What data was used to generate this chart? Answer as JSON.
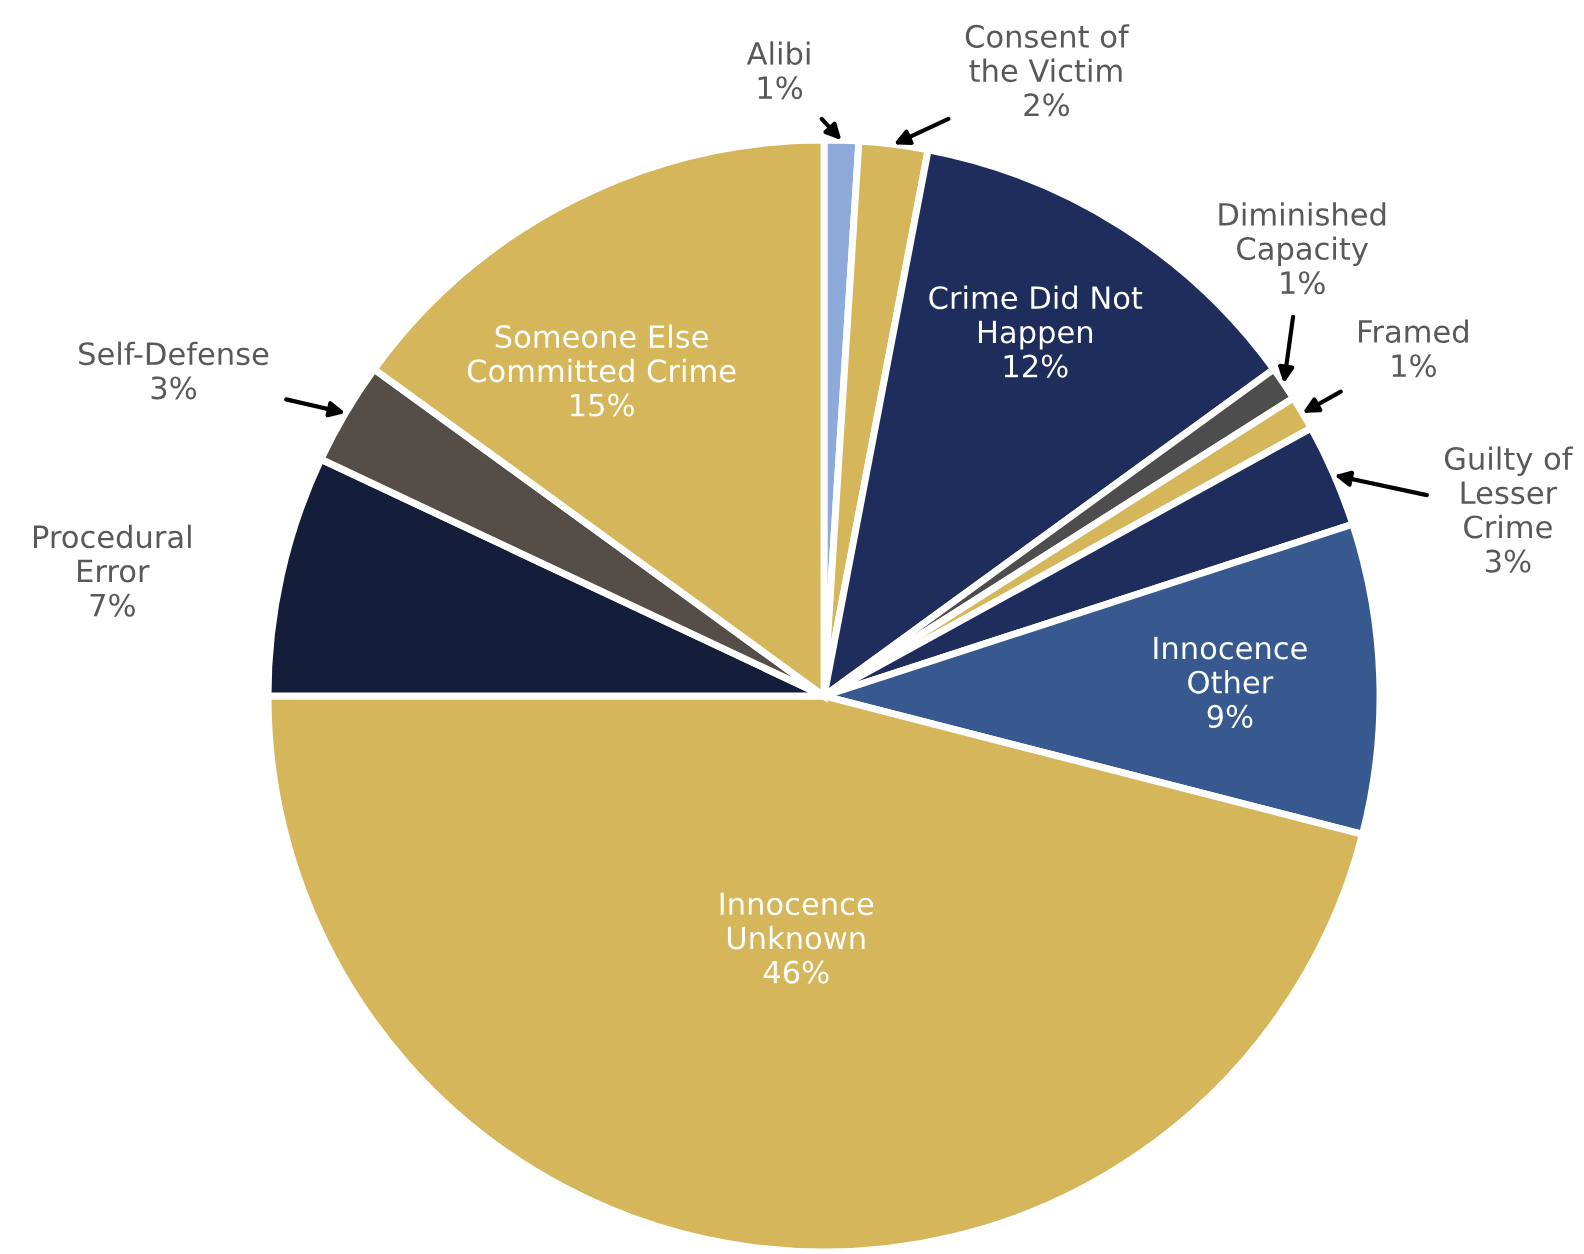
{
  "chart_data": {
    "type": "pie",
    "categories": [
      "Alibi",
      "Consent of the Victim",
      "Crime Did Not Happen",
      "Diminished Capacity",
      "Framed",
      "Guilty of Lesser Crime",
      "Innocence Other",
      "Innocence Unknown",
      "Procedural Error",
      "Self-Defense",
      "Someone Else Committed Crime"
    ],
    "values": [
      1,
      2,
      12,
      1,
      1,
      3,
      9,
      46,
      7,
      3,
      15
    ],
    "colors": [
      "#8eaadb",
      "#d6b65a",
      "#1f2d5c",
      "#4d4d4d",
      "#d6b65a",
      "#1f2d5c",
      "#37598f",
      "#d6b65a",
      "#141e3a",
      "#554d48",
      "#d6b65a"
    ],
    "value_labels": [
      "1%",
      "2%",
      "12%",
      "1%",
      "1%",
      "3%",
      "9%",
      "46%",
      "7%",
      "3%",
      "15%"
    ],
    "legend": false
  }
}
